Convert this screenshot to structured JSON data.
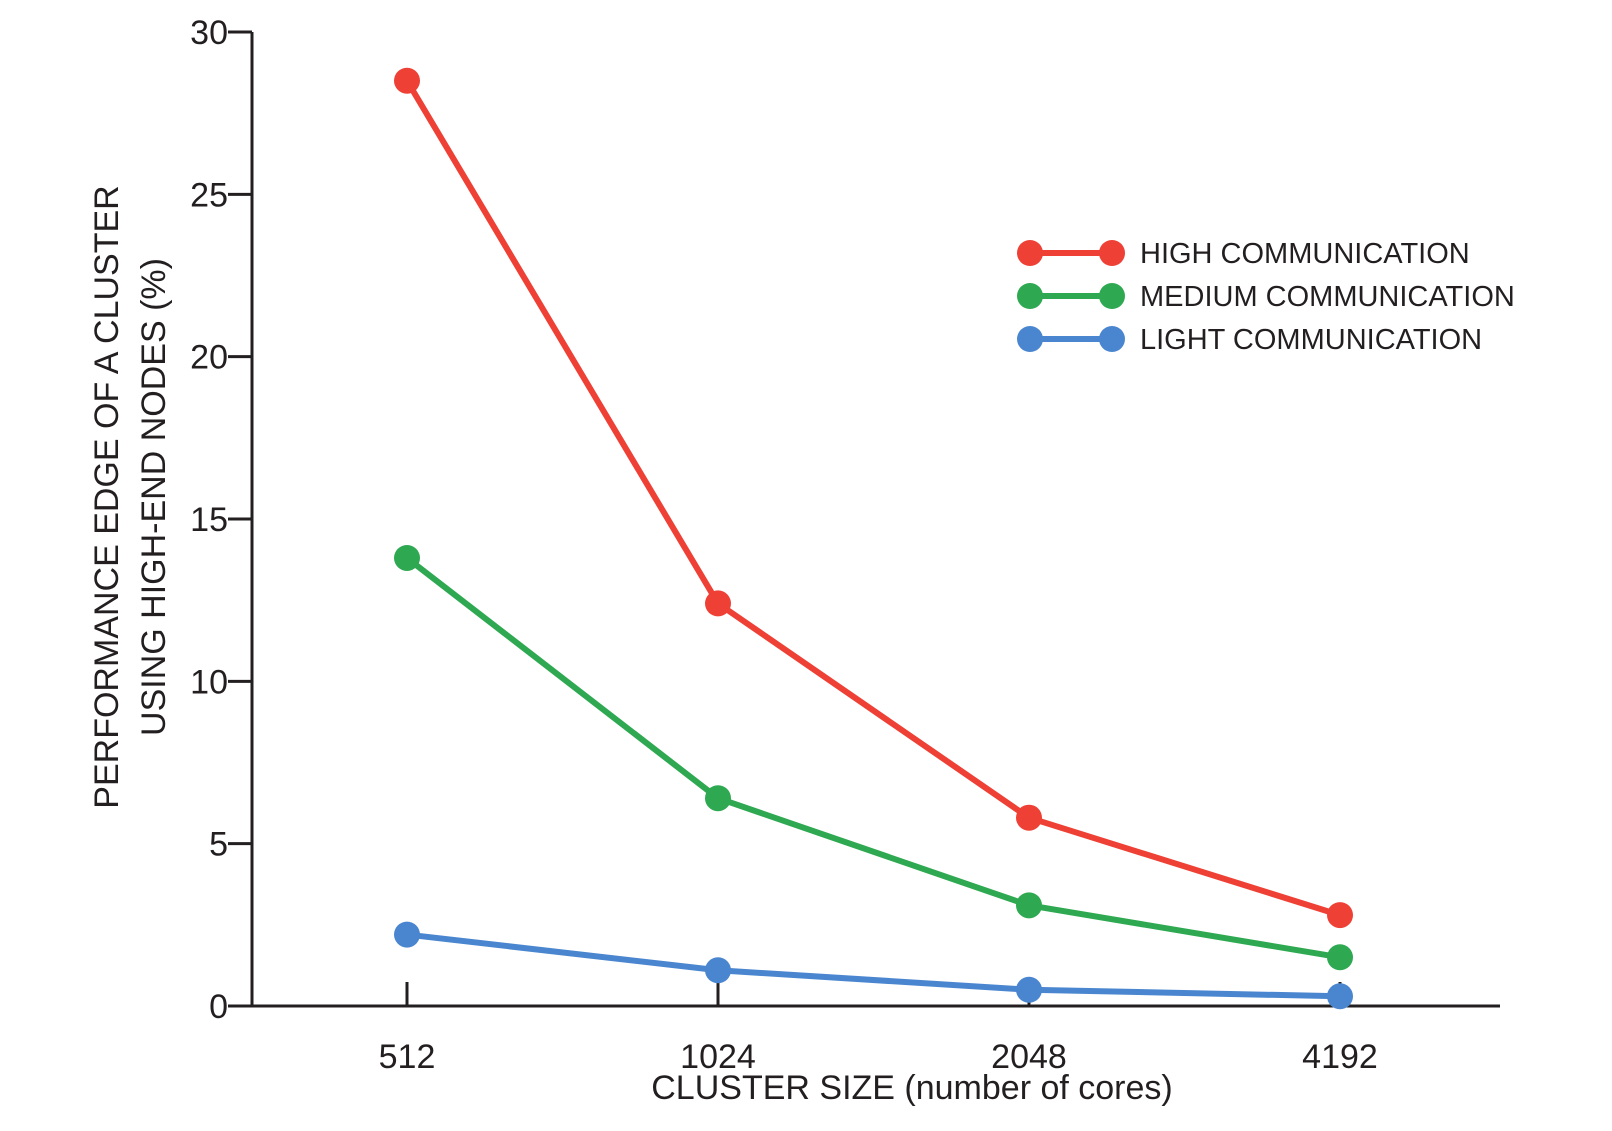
{
  "chart_data": {
    "type": "line",
    "title": "",
    "xlabel": "CLUSTER SIZE (number of cores)",
    "ylabel_lines": [
      "PERFORMANCE EDGE OF A CLUSTER",
      "USING HIGH-END NODES (%)"
    ],
    "categories": [
      "512",
      "1024",
      "2048",
      "4192"
    ],
    "ylim": [
      0,
      30
    ],
    "yticks": [
      0,
      5,
      10,
      15,
      20,
      25,
      30
    ],
    "grid": false,
    "legend_position": "top-right",
    "series": [
      {
        "name": "HIGH COMMUNICATION",
        "color": "#ee4035",
        "values": [
          28.5,
          12.4,
          5.8,
          2.8
        ]
      },
      {
        "name": "MEDIUM COMMUNICATION",
        "color": "#2ea851",
        "values": [
          13.8,
          6.4,
          3.1,
          1.5
        ]
      },
      {
        "name": "LIGHT COMMUNICATION",
        "color": "#4a86cf",
        "values": [
          2.2,
          1.1,
          0.5,
          0.3
        ]
      }
    ]
  }
}
